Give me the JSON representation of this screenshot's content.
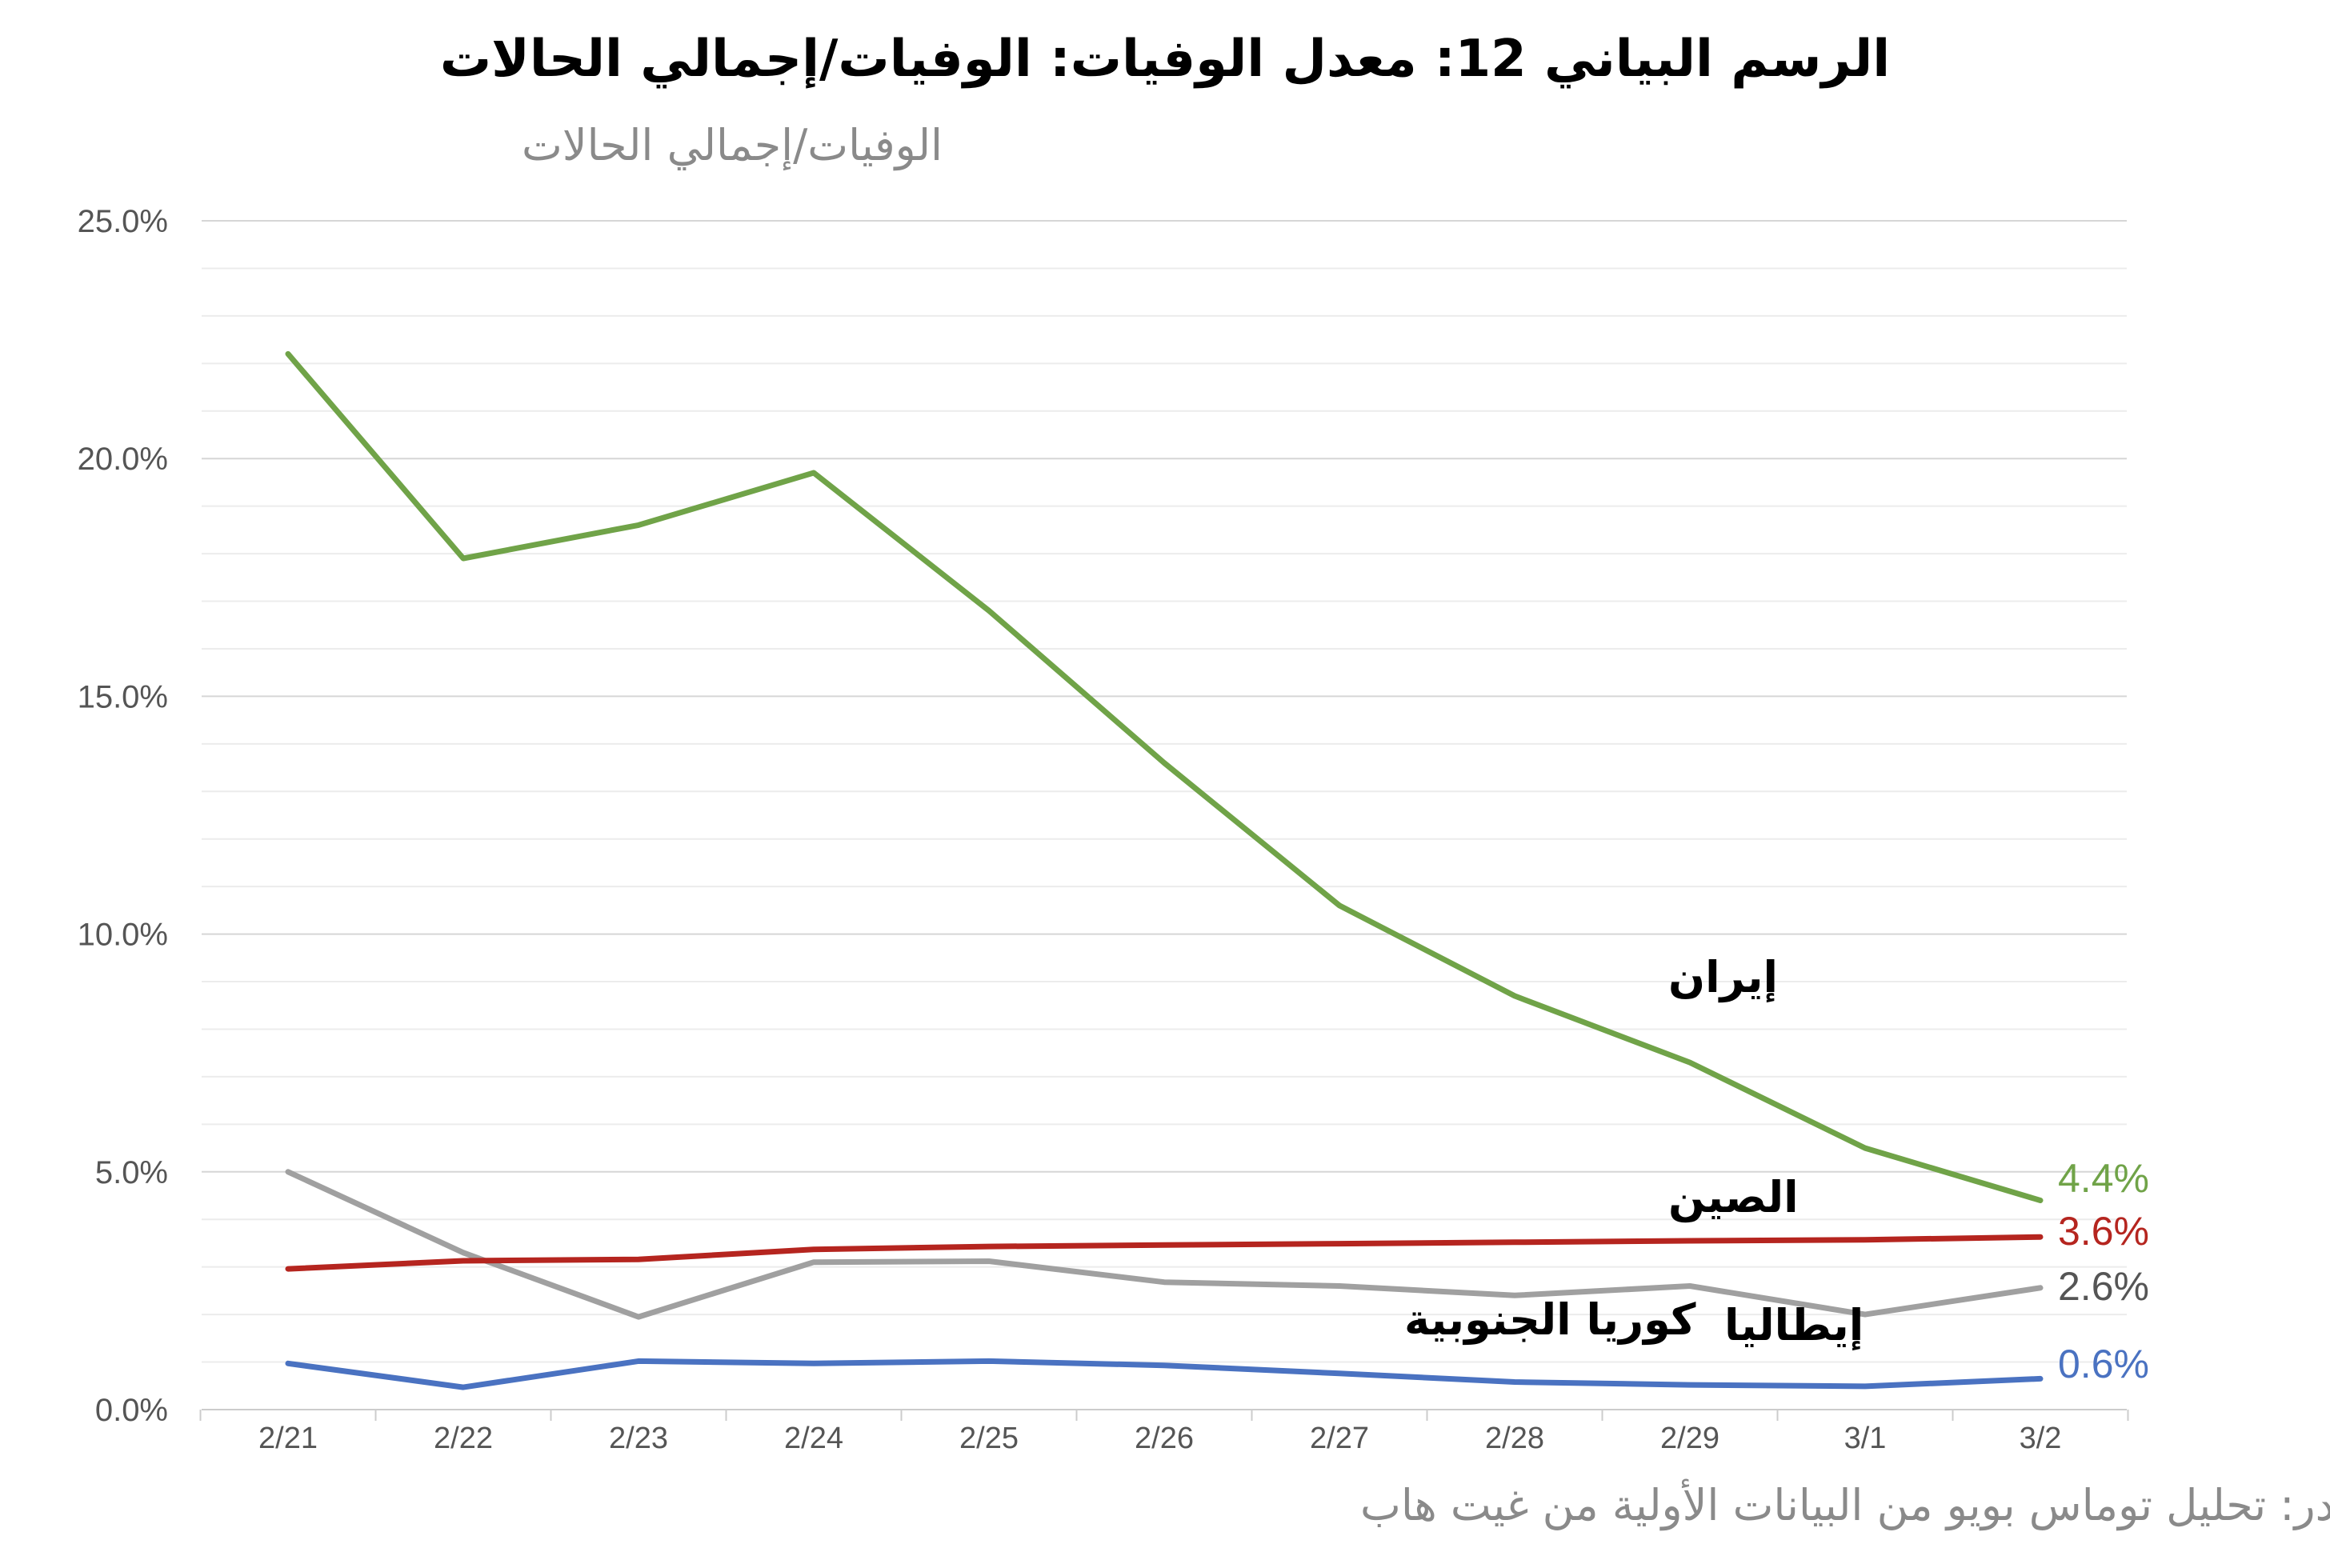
{
  "chart_data": {
    "type": "line",
    "title": "الرسم البياني 12: معدل الوفيات: الوفيات/إجمالي الحالات",
    "ylabel": "الوفيات/إجمالي الحالات",
    "source": "المصدر: تحليل توماس بويو من البيانات الأولية من غيت هاب",
    "categories": [
      "2/21",
      "2/22",
      "2/23",
      "2/24",
      "2/25",
      "2/26",
      "2/27",
      "2/28",
      "2/29",
      "3/1",
      "3/2"
    ],
    "ylim": [
      0,
      25
    ],
    "yticks": [
      "0.0%",
      "5.0%",
      "10.0%",
      "15.0%",
      "20.0%",
      "25.0%"
    ],
    "grid": true,
    "series": [
      {
        "name": "إيران",
        "color": "#70a348",
        "end_label": "4.4%",
        "values": [
          22.2,
          17.9,
          18.6,
          19.7,
          16.8,
          13.6,
          10.6,
          8.7,
          7.3,
          5.5,
          4.4
        ]
      },
      {
        "name": "الصين",
        "color": "#b5251f",
        "end_label": "3.6%",
        "values": [
          2.96,
          3.13,
          3.16,
          3.37,
          3.43,
          3.46,
          3.49,
          3.52,
          3.55,
          3.57,
          3.63
        ]
      },
      {
        "name": "إيطاليا",
        "color": "#a0a0a0",
        "end_label": "2.6%",
        "values": [
          5.0,
          3.3,
          1.95,
          3.1,
          3.12,
          2.68,
          2.6,
          2.4,
          2.6,
          2.0,
          2.56
        ]
      },
      {
        "name": "كوريا الجنوبية",
        "color": "#4a72c1",
        "end_label": "0.6%",
        "values": [
          0.97,
          0.47,
          1.02,
          0.97,
          1.02,
          0.93,
          0.76,
          0.58,
          0.52,
          0.49,
          0.65
        ]
      }
    ]
  }
}
